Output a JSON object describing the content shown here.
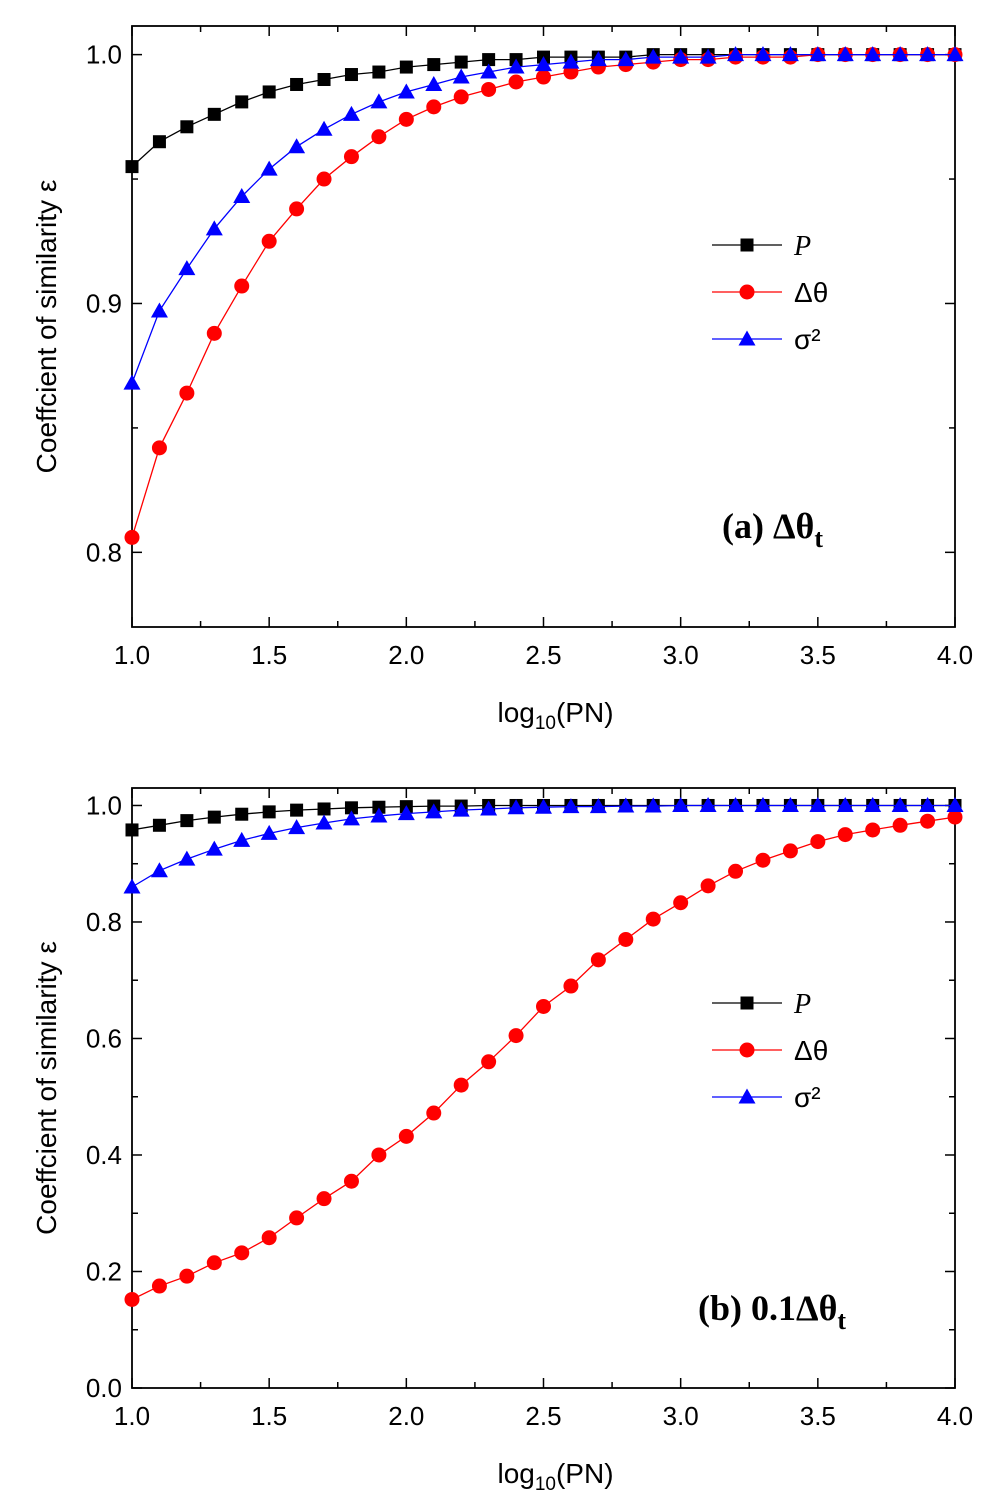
{
  "chart_data": [
    {
      "type": "line",
      "panel_label": "(a) Δθ",
      "panel_label_sub": "t",
      "xlabel": "log",
      "xlabel_sub": "10",
      "xlabel_tail": "(PN)",
      "ylabel": "Coeffcient of similarity ε",
      "xlim": [
        1.0,
        4.0
      ],
      "ylim": [
        0.77,
        1.0115
      ],
      "xticks": [
        "1.0",
        "1.5",
        "2.0",
        "2.5",
        "3.0",
        "3.5",
        "4.0"
      ],
      "yticks": [
        "0.8",
        "0.9",
        "1.0"
      ],
      "legend_position": "center-right",
      "x": [
        1.0,
        1.1,
        1.2,
        1.3,
        1.4,
        1.5,
        1.6,
        1.7,
        1.8,
        1.9,
        2.0,
        2.1,
        2.2,
        2.3,
        2.4,
        2.5,
        2.6,
        2.7,
        2.8,
        2.9,
        3.0,
        3.1,
        3.2,
        3.3,
        3.4,
        3.5,
        3.6,
        3.7,
        3.8,
        3.9,
        4.0
      ],
      "series": [
        {
          "name": "P",
          "color": "#000000",
          "marker": "square",
          "values": [
            0.955,
            0.965,
            0.971,
            0.976,
            0.981,
            0.985,
            0.988,
            0.99,
            0.992,
            0.993,
            0.995,
            0.996,
            0.997,
            0.998,
            0.998,
            0.999,
            0.999,
            0.999,
            0.999,
            1.0,
            1.0,
            1.0,
            1.0,
            1.0,
            1.0,
            1.0,
            1.0,
            1.0,
            1.0,
            1.0,
            1.0
          ]
        },
        {
          "name": "Δθ",
          "color": "#ff0000",
          "marker": "circle",
          "values": [
            0.806,
            0.842,
            0.864,
            0.888,
            0.907,
            0.925,
            0.938,
            0.95,
            0.959,
            0.967,
            0.974,
            0.979,
            0.983,
            0.986,
            0.989,
            0.991,
            0.993,
            0.995,
            0.996,
            0.997,
            0.998,
            0.998,
            0.999,
            0.999,
            0.999,
            1.0,
            1.0,
            1.0,
            1.0,
            1.0,
            1.0
          ]
        },
        {
          "name": "σ²",
          "color": "#0000ff",
          "marker": "triangle",
          "values": [
            0.868,
            0.897,
            0.914,
            0.93,
            0.943,
            0.954,
            0.963,
            0.97,
            0.976,
            0.981,
            0.985,
            0.988,
            0.991,
            0.993,
            0.995,
            0.996,
            0.997,
            0.998,
            0.998,
            0.999,
            0.999,
            0.999,
            1.0,
            1.0,
            1.0,
            1.0,
            1.0,
            1.0,
            1.0,
            1.0,
            1.0
          ]
        }
      ]
    },
    {
      "type": "line",
      "panel_label": "(b) 0.1Δθ",
      "panel_label_sub": "t",
      "xlabel": "log",
      "xlabel_sub": "10",
      "xlabel_tail": "(PN)",
      "ylabel": "Coeffcient of similarity ε",
      "xlim": [
        1.0,
        4.0
      ],
      "ylim": [
        0.0,
        1.03
      ],
      "xticks": [
        "1.0",
        "1.5",
        "2.0",
        "2.5",
        "3.0",
        "3.5",
        "4.0"
      ],
      "yticks": [
        "0.0",
        "0.2",
        "0.4",
        "0.6",
        "0.8",
        "1.0"
      ],
      "legend_position": "center-right",
      "x": [
        1.0,
        1.1,
        1.2,
        1.3,
        1.4,
        1.5,
        1.6,
        1.7,
        1.8,
        1.9,
        2.0,
        2.1,
        2.2,
        2.3,
        2.4,
        2.5,
        2.6,
        2.7,
        2.8,
        2.9,
        3.0,
        3.1,
        3.2,
        3.3,
        3.4,
        3.5,
        3.6,
        3.7,
        3.8,
        3.9,
        4.0
      ],
      "series": [
        {
          "name": "P",
          "color": "#000000",
          "marker": "square",
          "values": [
            0.958,
            0.966,
            0.974,
            0.98,
            0.985,
            0.989,
            0.992,
            0.994,
            0.996,
            0.997,
            0.998,
            0.999,
            0.999,
            1.0,
            1.0,
            1.0,
            1.0,
            1.0,
            1.0,
            1.0,
            1.0,
            1.0,
            1.0,
            1.0,
            1.0,
            1.0,
            1.0,
            1.0,
            1.0,
            1.0,
            1.0
          ]
        },
        {
          "name": "Δθ",
          "color": "#ff0000",
          "marker": "circle",
          "values": [
            0.152,
            0.175,
            0.192,
            0.215,
            0.232,
            0.258,
            0.292,
            0.325,
            0.355,
            0.4,
            0.432,
            0.472,
            0.52,
            0.56,
            0.605,
            0.655,
            0.69,
            0.735,
            0.77,
            0.805,
            0.833,
            0.862,
            0.887,
            0.906,
            0.922,
            0.938,
            0.95,
            0.958,
            0.966,
            0.973,
            0.98
          ]
        },
        {
          "name": "σ²",
          "color": "#0000ff",
          "marker": "triangle",
          "values": [
            0.86,
            0.888,
            0.908,
            0.925,
            0.94,
            0.952,
            0.962,
            0.97,
            0.977,
            0.982,
            0.986,
            0.989,
            0.992,
            0.994,
            0.996,
            0.997,
            0.998,
            0.998,
            0.999,
            0.999,
            1.0,
            1.0,
            1.0,
            1.0,
            1.0,
            1.0,
            1.0,
            1.0,
            1.0,
            1.0,
            1.0
          ]
        }
      ]
    }
  ]
}
